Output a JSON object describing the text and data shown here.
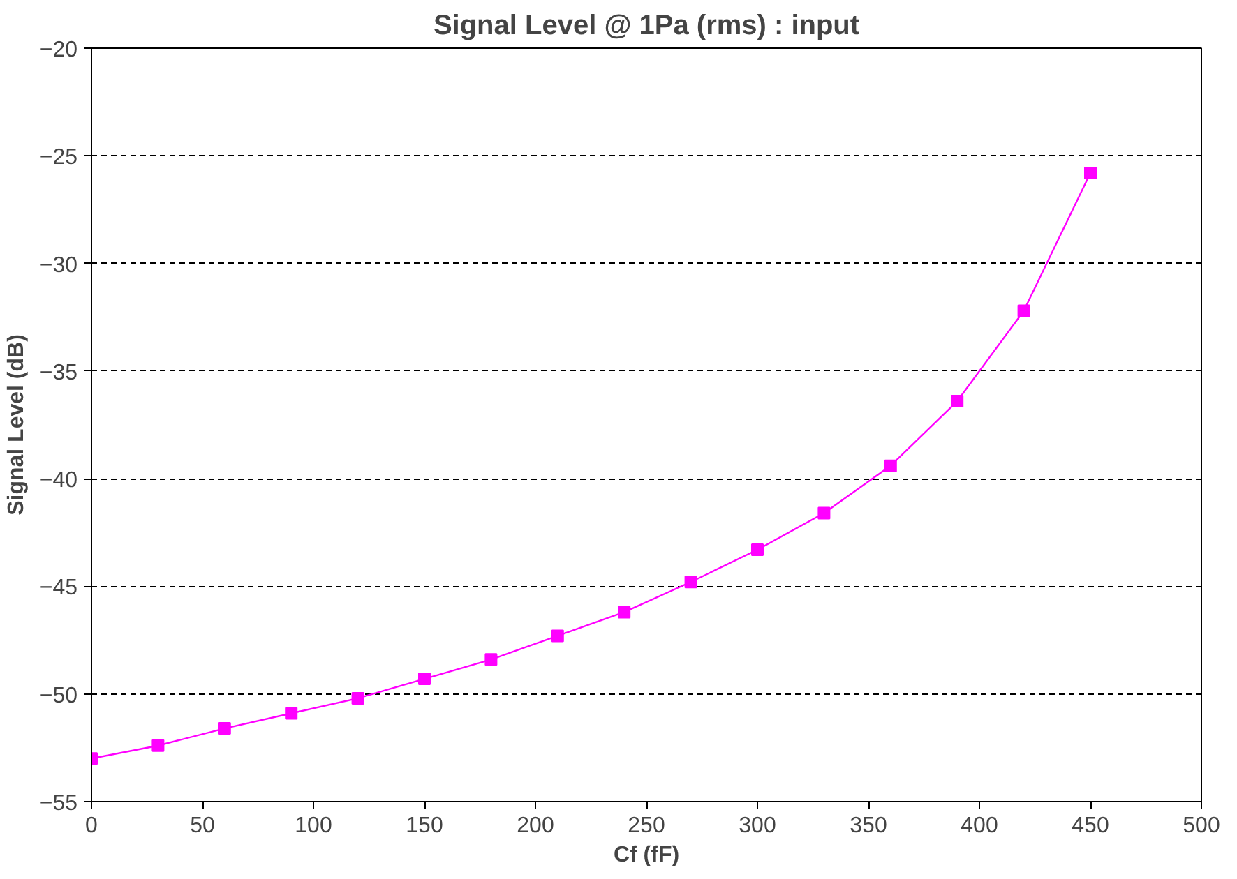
{
  "chart_data": {
    "type": "line",
    "title": "Signal Level @ 1Pa (rms) : input",
    "xlabel": "Cf (fF)",
    "ylabel": "Signal Level (dB)",
    "x": [
      0,
      30,
      60,
      90,
      120,
      150,
      180,
      210,
      240,
      270,
      300,
      330,
      360,
      390,
      420,
      450
    ],
    "series": [
      {
        "color": "#ff00ff",
        "values": [
          -53.0,
          -52.4,
          -51.6,
          -50.9,
          -50.2,
          -49.3,
          -48.4,
          -47.3,
          -46.2,
          -44.8,
          -43.3,
          -41.6,
          -39.4,
          -36.4,
          -32.2,
          -25.8
        ]
      }
    ],
    "xlim": [
      0,
      500
    ],
    "xticks": [
      0,
      50,
      100,
      150,
      200,
      250,
      300,
      350,
      400,
      450,
      500
    ],
    "ylim": [
      -55,
      -20
    ],
    "yticks": [
      -55,
      -50,
      -45,
      -40,
      -35,
      -30,
      -25,
      -20
    ],
    "grid": "y",
    "marker": "square",
    "line_style": "solid"
  }
}
